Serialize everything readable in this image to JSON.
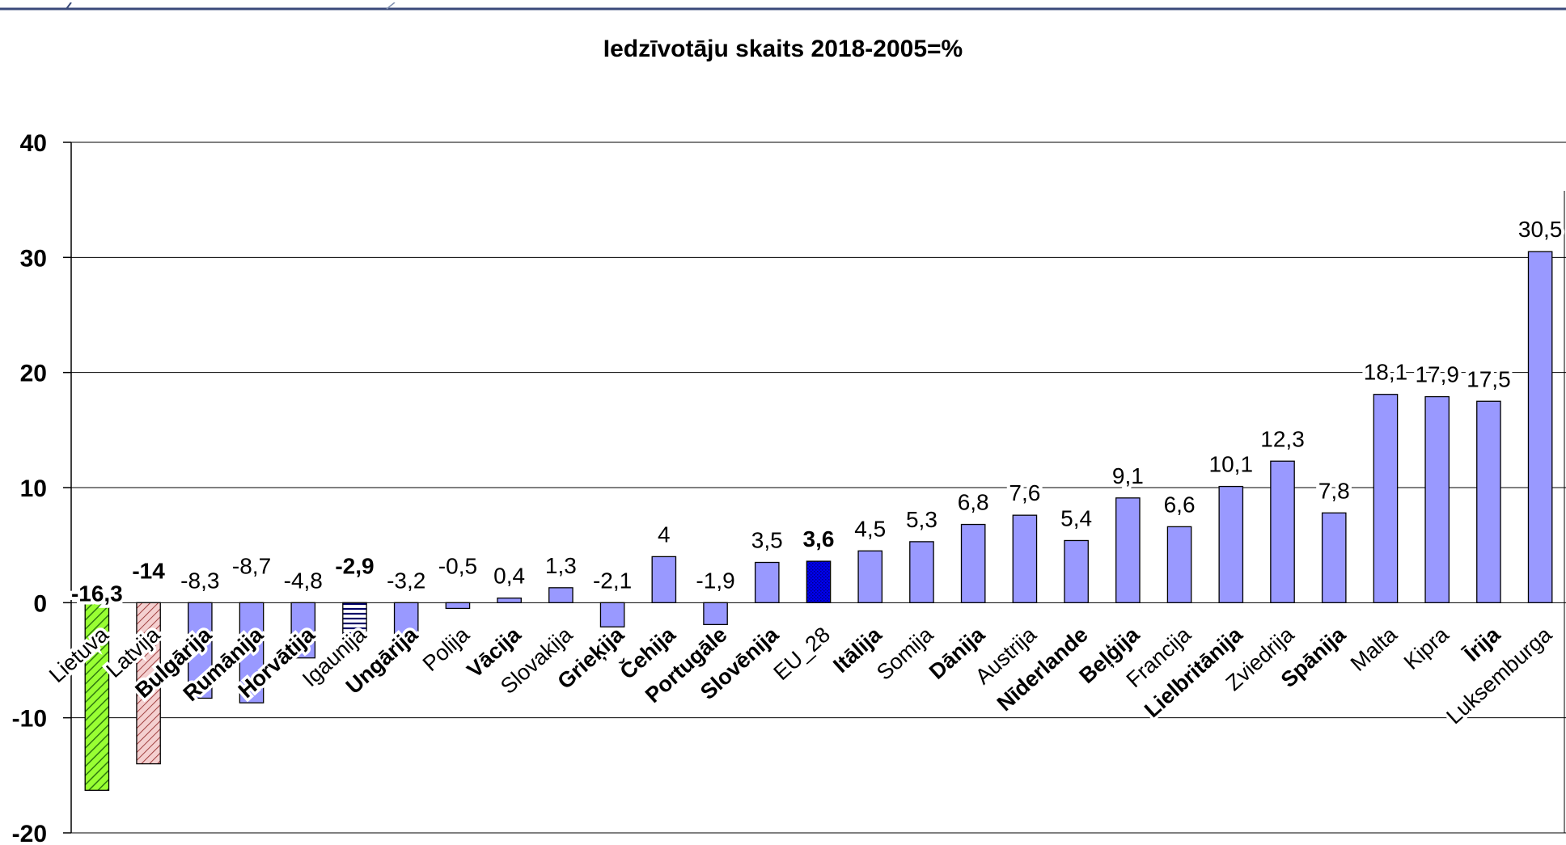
{
  "chart_data": {
    "type": "bar",
    "title": "Iedzīvotāju skaits 2018-2005=%",
    "xlabel": "",
    "ylabel": "",
    "ylim": [
      -20,
      40
    ],
    "yticks": [
      "40",
      "30",
      "20",
      "10",
      "0",
      "-10",
      "-20"
    ],
    "grid": true,
    "categories": [
      "Lietuva",
      "Latvija",
      "Bulgārija",
      "Rumānija",
      "Horvātija",
      "Igaunija",
      "Ungārija",
      "Polija",
      "Vācija",
      "Slovakija",
      "Grieķija",
      "Čehija",
      "Portugāle",
      "Slovēnija",
      "EU_28",
      "Itālija",
      "Somija",
      "Dānija",
      "Austrija",
      "Nīderlande",
      "Beļģija",
      "Francija",
      "Lielbritānija",
      "Zviedrija",
      "Spānija",
      "Malta",
      "Kipra",
      "Īrija",
      "Luksemburga"
    ],
    "values": [
      -16.3,
      -14,
      -8.3,
      -8.7,
      -4.8,
      -2.9,
      -3.2,
      -0.5,
      0.4,
      1.3,
      -2.1,
      4,
      -1.9,
      3.5,
      3.6,
      4.5,
      5.3,
      6.8,
      7.6,
      5.4,
      9.1,
      6.6,
      10.1,
      12.3,
      7.8,
      18.1,
      17.9,
      17.5,
      30.5
    ],
    "data_labels": [
      "-16,3",
      "-14",
      "-8,3",
      "-8,7",
      "-4,8",
      "-2,9",
      "-3,2",
      "-0,5",
      "0,4",
      "1,3",
      "-2,1",
      "4",
      "-1,9",
      "3,5",
      "3,6",
      "4,5",
      "5,3",
      "6,8",
      "7,6",
      "5,4",
      "9,1",
      "6,6",
      "10,1",
      "12,3",
      "7,8",
      "18,1",
      "17,9",
      "17,5",
      "30,5"
    ],
    "bar_colors": [
      "#99ff33",
      "#e8a0a0",
      "#9999ff",
      "#9999ff",
      "#9999ff",
      "#ffffff",
      "#9999ff",
      "#9999ff",
      "#9999ff",
      "#9999ff",
      "#9999ff",
      "#9999ff",
      "#9999ff",
      "#9999ff",
      "#0000ee",
      "#9999ff",
      "#9999ff",
      "#9999ff",
      "#9999ff",
      "#9999ff",
      "#9999ff",
      "#9999ff",
      "#9999ff",
      "#9999ff",
      "#9999ff",
      "#9999ff",
      "#9999ff",
      "#9999ff",
      "#9999ff"
    ],
    "bar_patterns": [
      "diagonal",
      "diagonal",
      "none",
      "none",
      "none",
      "horizontal",
      "none",
      "none",
      "none",
      "none",
      "none",
      "none",
      "none",
      "none",
      "dotted",
      "none",
      "none",
      "none",
      "none",
      "none",
      "none",
      "none",
      "none",
      "none",
      "none",
      "none",
      "none",
      "none",
      "none"
    ],
    "bold_categories": [
      "Bulgārija",
      "Rumānija",
      "Horvātija",
      "Ungārija",
      "Vācija",
      "Grieķija",
      "Čehija",
      "Portugāle",
      "Slovēnija",
      "Itālija",
      "Dānija",
      "Nīderlande",
      "Beļģija",
      "Lielbritānija",
      "Spānija",
      "Īrija"
    ],
    "bold_value_labels": [
      "-16,3",
      "-14",
      "-2,9",
      "3,6"
    ]
  }
}
